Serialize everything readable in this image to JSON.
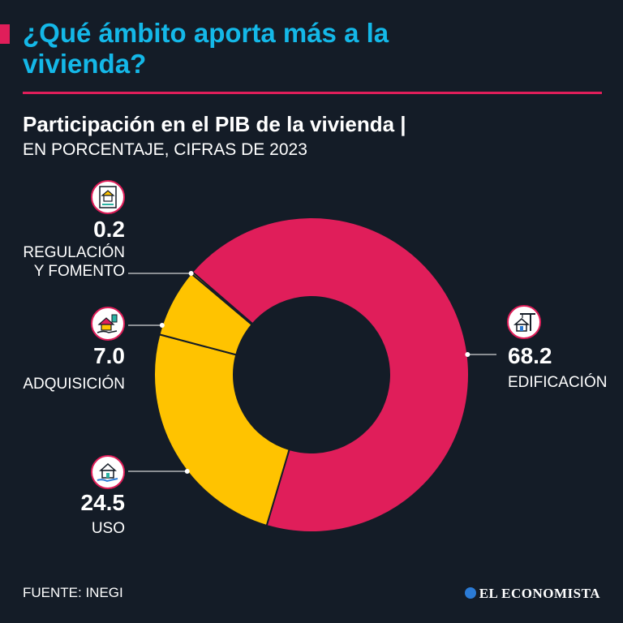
{
  "header": {
    "title": "¿Qué ámbito aporta más a la vivienda?",
    "subtitle": "Participación en el PIB de la vivienda |",
    "unit_note": "EN PORCENTAJE, CIFRAS DE 2023"
  },
  "chart_data": {
    "type": "pie",
    "subtype": "donut",
    "title": "Participación en el PIB de la vivienda",
    "unit": "EN PORCENTAJE, CIFRAS DE 2023",
    "categories": [
      "EDIFICACIÓN",
      "USO",
      "ADQUISICIÓN",
      "REGULACIÓN Y FOMENTO"
    ],
    "values": [
      68.2,
      24.5,
      7.0,
      0.2
    ],
    "value_labels": [
      "68.2",
      "24.5",
      "7.0",
      "0.2"
    ],
    "label_lines": [
      [
        "EDIFICACIÓN"
      ],
      [
        "USO"
      ],
      [
        "ADQUISICIÓN"
      ],
      [
        "REGULACIÓN",
        "Y FOMENTO"
      ]
    ],
    "colors": [
      "#e01e5a",
      "#ffc300",
      "#ffc300",
      "#ffc300"
    ],
    "icons": [
      "construction-crane-house-icon",
      "house-in-hand-icon",
      "house-purchase-icon",
      "house-document-icon"
    ]
  },
  "footer": {
    "source": "FUENTE: INEGI",
    "brand": "EL ECONOMISTA"
  },
  "colors": {
    "background": "#141c27",
    "accent": "#e01e5a",
    "title": "#14b8e8",
    "secondary": "#ffc300",
    "text": "#ffffff"
  }
}
